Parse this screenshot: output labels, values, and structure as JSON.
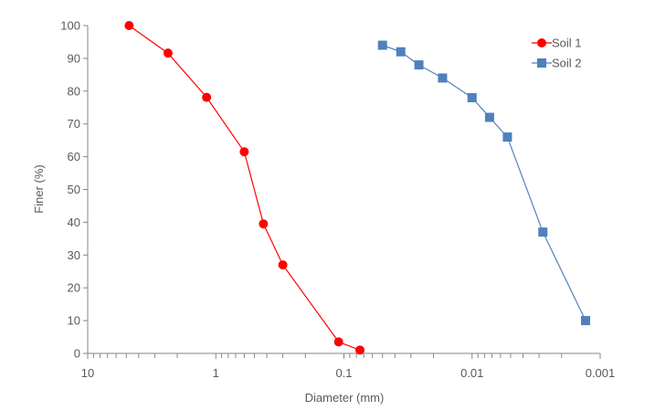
{
  "chart_data": {
    "type": "scatter",
    "xlabel": "Diameter (mm)",
    "ylabel": "Finer (%)",
    "x_scale": "log",
    "x_reversed": true,
    "xlim": [
      10,
      0.001
    ],
    "ylim": [
      0,
      100
    ],
    "x_ticks": [
      10,
      1,
      0.1,
      0.01,
      0.001
    ],
    "x_tick_labels": [
      "10",
      "1",
      "0.1",
      "0.01",
      "0.001"
    ],
    "y_ticks": [
      0,
      10,
      20,
      30,
      40,
      50,
      60,
      70,
      80,
      90,
      100
    ],
    "y_tick_labels": [
      "0",
      "10",
      "20",
      "30",
      "40",
      "50",
      "60",
      "70",
      "80",
      "90",
      "100"
    ],
    "grid": false,
    "legend_position": "top-right",
    "series": [
      {
        "name": "Soil 1",
        "color": "#ff0000",
        "marker": "circle",
        "x": [
          4.75,
          2.36,
          1.18,
          0.6,
          0.425,
          0.3,
          0.11,
          0.075
        ],
        "y": [
          100,
          91.6,
          78.1,
          61.5,
          39.5,
          27,
          3.5,
          1
        ]
      },
      {
        "name": "Soil 2",
        "color": "#4f81bd",
        "marker": "square",
        "x": [
          0.05,
          0.036,
          0.026,
          0.017,
          0.01,
          0.0073,
          0.0053,
          0.0028,
          0.0013
        ],
        "y": [
          94,
          92,
          88,
          84,
          78,
          72,
          66,
          37,
          10
        ]
      }
    ]
  }
}
